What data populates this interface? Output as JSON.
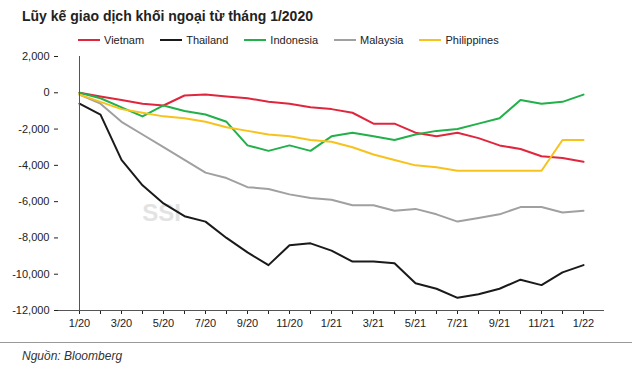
{
  "chart_data": {
    "type": "line",
    "title": "Lũy kế giao dịch khối ngoại từ tháng 1/2020",
    "caption": "Nguồn: Bloomberg",
    "annotations": [
      "SSI"
    ],
    "legend": "top",
    "grid": false,
    "categories": [
      "1/20",
      null,
      "3/20",
      null,
      "5/20",
      null,
      "7/20",
      null,
      "9/20",
      null,
      "11/20",
      null,
      "1/21",
      null,
      "3/21",
      null,
      "5/21",
      null,
      "7/21",
      null,
      "9/21",
      null,
      "11/21",
      null,
      "1/22"
    ],
    "ylim": [
      -12000,
      2000
    ],
    "yticks": [
      {
        "value": 2000,
        "label": "2,000"
      },
      0,
      {
        "value": -2000,
        "label": "-2,000"
      },
      {
        "value": -4000,
        "label": "-4,000"
      },
      {
        "value": -6000,
        "label": "-6,000"
      },
      {
        "value": -8000,
        "label": "-8,000"
      },
      {
        "value": -10000,
        "label": "-10,000"
      },
      {
        "value": -12000,
        "label": "-12,000"
      }
    ],
    "series": [
      {
        "name": "Vietnam",
        "color": "#e0263d",
        "values": [
          0,
          -200,
          -400,
          -600,
          -700,
          -150,
          -100,
          -200,
          -300,
          -500,
          -600,
          -800,
          -900,
          -1100,
          -1700,
          -1700,
          -2200,
          -2400,
          -2200,
          -2500,
          -2900,
          -3100,
          -3500,
          -3600,
          -3800
        ]
      },
      {
        "name": "Thailand",
        "color": "#1a1a1a",
        "values": [
          -600,
          -1200,
          -3700,
          -5100,
          -6100,
          -6800,
          -7100,
          -8000,
          -8800,
          -9500,
          -8400,
          -8300,
          -8700,
          -9300,
          -9300,
          -9400,
          -10500,
          -10800,
          -11300,
          -11100,
          -10800,
          -10300,
          -10600,
          -9900,
          -9500
        ]
      },
      {
        "name": "Indonesia",
        "color": "#22b04a",
        "values": [
          0,
          -300,
          -800,
          -1300,
          -700,
          -1000,
          -1200,
          -1600,
          -2900,
          -3200,
          -2900,
          -3200,
          -2400,
          -2200,
          -2400,
          -2600,
          -2300,
          -2100,
          -2000,
          -1700,
          -1400,
          -400,
          -600,
          -500,
          -100
        ]
      },
      {
        "name": "Malaysia",
        "color": "#a0a0a0",
        "values": [
          -100,
          -600,
          -1600,
          -2300,
          -3000,
          -3700,
          -4400,
          -4700,
          -5200,
          -5300,
          -5600,
          -5800,
          -5900,
          -6200,
          -6200,
          -6500,
          -6400,
          -6700,
          -7100,
          -6900,
          -6700,
          -6300,
          -6300,
          -6600,
          -6500
        ]
      },
      {
        "name": "Philippines",
        "color": "#f7c21b",
        "values": [
          -100,
          -500,
          -900,
          -1100,
          -1300,
          -1400,
          -1600,
          -1900,
          -2100,
          -2300,
          -2400,
          -2600,
          -2700,
          -3000,
          -3400,
          -3700,
          -4000,
          -4100,
          -4300,
          -4300,
          -4300,
          -4300,
          -4300,
          -2600,
          -2600
        ]
      }
    ]
  }
}
